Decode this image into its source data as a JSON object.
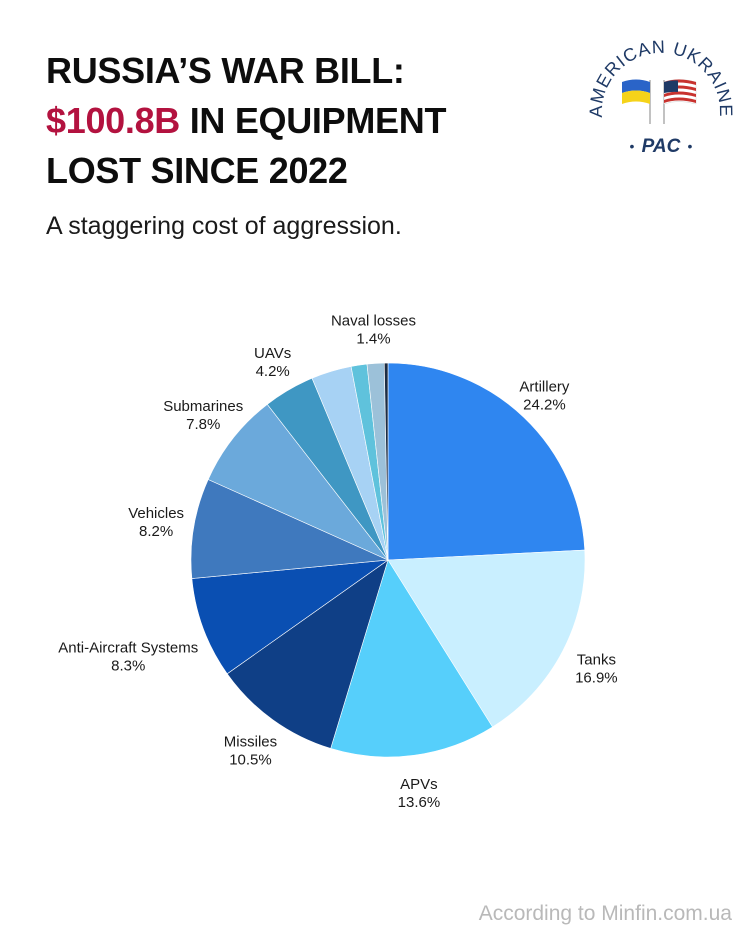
{
  "header": {
    "title_line1": "RUSSIA’S WAR BILL:",
    "title_highlight": "$100.8B",
    "title_line2_rest": " IN EQUIPMENT",
    "title_line3": "LOST SINCE 2022",
    "subtitle": "A staggering cost of aggression."
  },
  "logo": {
    "arc_text": "AMERICAN UKRAINE",
    "bottom_text": "PAC",
    "star": "•",
    "icons": [
      "ukraine-flag-icon",
      "us-flag-icon"
    ],
    "colors": {
      "navy": "#1f3a66",
      "ua_blue": "#2a64c8",
      "ua_yellow": "#f5d31a",
      "us_red": "#c8322e"
    }
  },
  "footer": {
    "source": "According to Minfin.com.ua"
  },
  "colors": {
    "accent": "#b3123f"
  },
  "chart_data": {
    "type": "pie",
    "title": "",
    "slices": [
      {
        "label": "Artillery",
        "value": 24.2,
        "display": "24.2%",
        "color": "#2f86f0"
      },
      {
        "label": "Tanks",
        "value": 16.9,
        "display": "16.9%",
        "color": "#c9efff"
      },
      {
        "label": "APVs",
        "value": 13.6,
        "display": "13.6%",
        "color": "#56cffb"
      },
      {
        "label": "Missiles",
        "value": 10.5,
        "display": "10.5%",
        "color": "#0f3f86"
      },
      {
        "label": "Anti-Aircraft Systems",
        "value": 8.3,
        "display": "8.3%",
        "color": "#0a4fb2"
      },
      {
        "label": "Vehicles",
        "value": 8.2,
        "display": "8.2%",
        "color": "#3f79be"
      },
      {
        "label": "Submarines",
        "value": 7.8,
        "display": "7.8%",
        "color": "#6ba9db"
      },
      {
        "label": "UAVs",
        "value": 4.2,
        "display": "4.2%",
        "color": "#3f97c3"
      },
      {
        "label": "",
        "value": 3.3,
        "display": "",
        "color": "#a7d2f4"
      },
      {
        "label": "",
        "value": 1.3,
        "display": "",
        "color": "#5fc2dc"
      },
      {
        "label": "Naval losses",
        "value": 1.4,
        "display": "1.4%",
        "color": "#9cc1d9"
      },
      {
        "label": "",
        "value": 0.3,
        "display": "",
        "color": "#1c2d44"
      }
    ]
  }
}
